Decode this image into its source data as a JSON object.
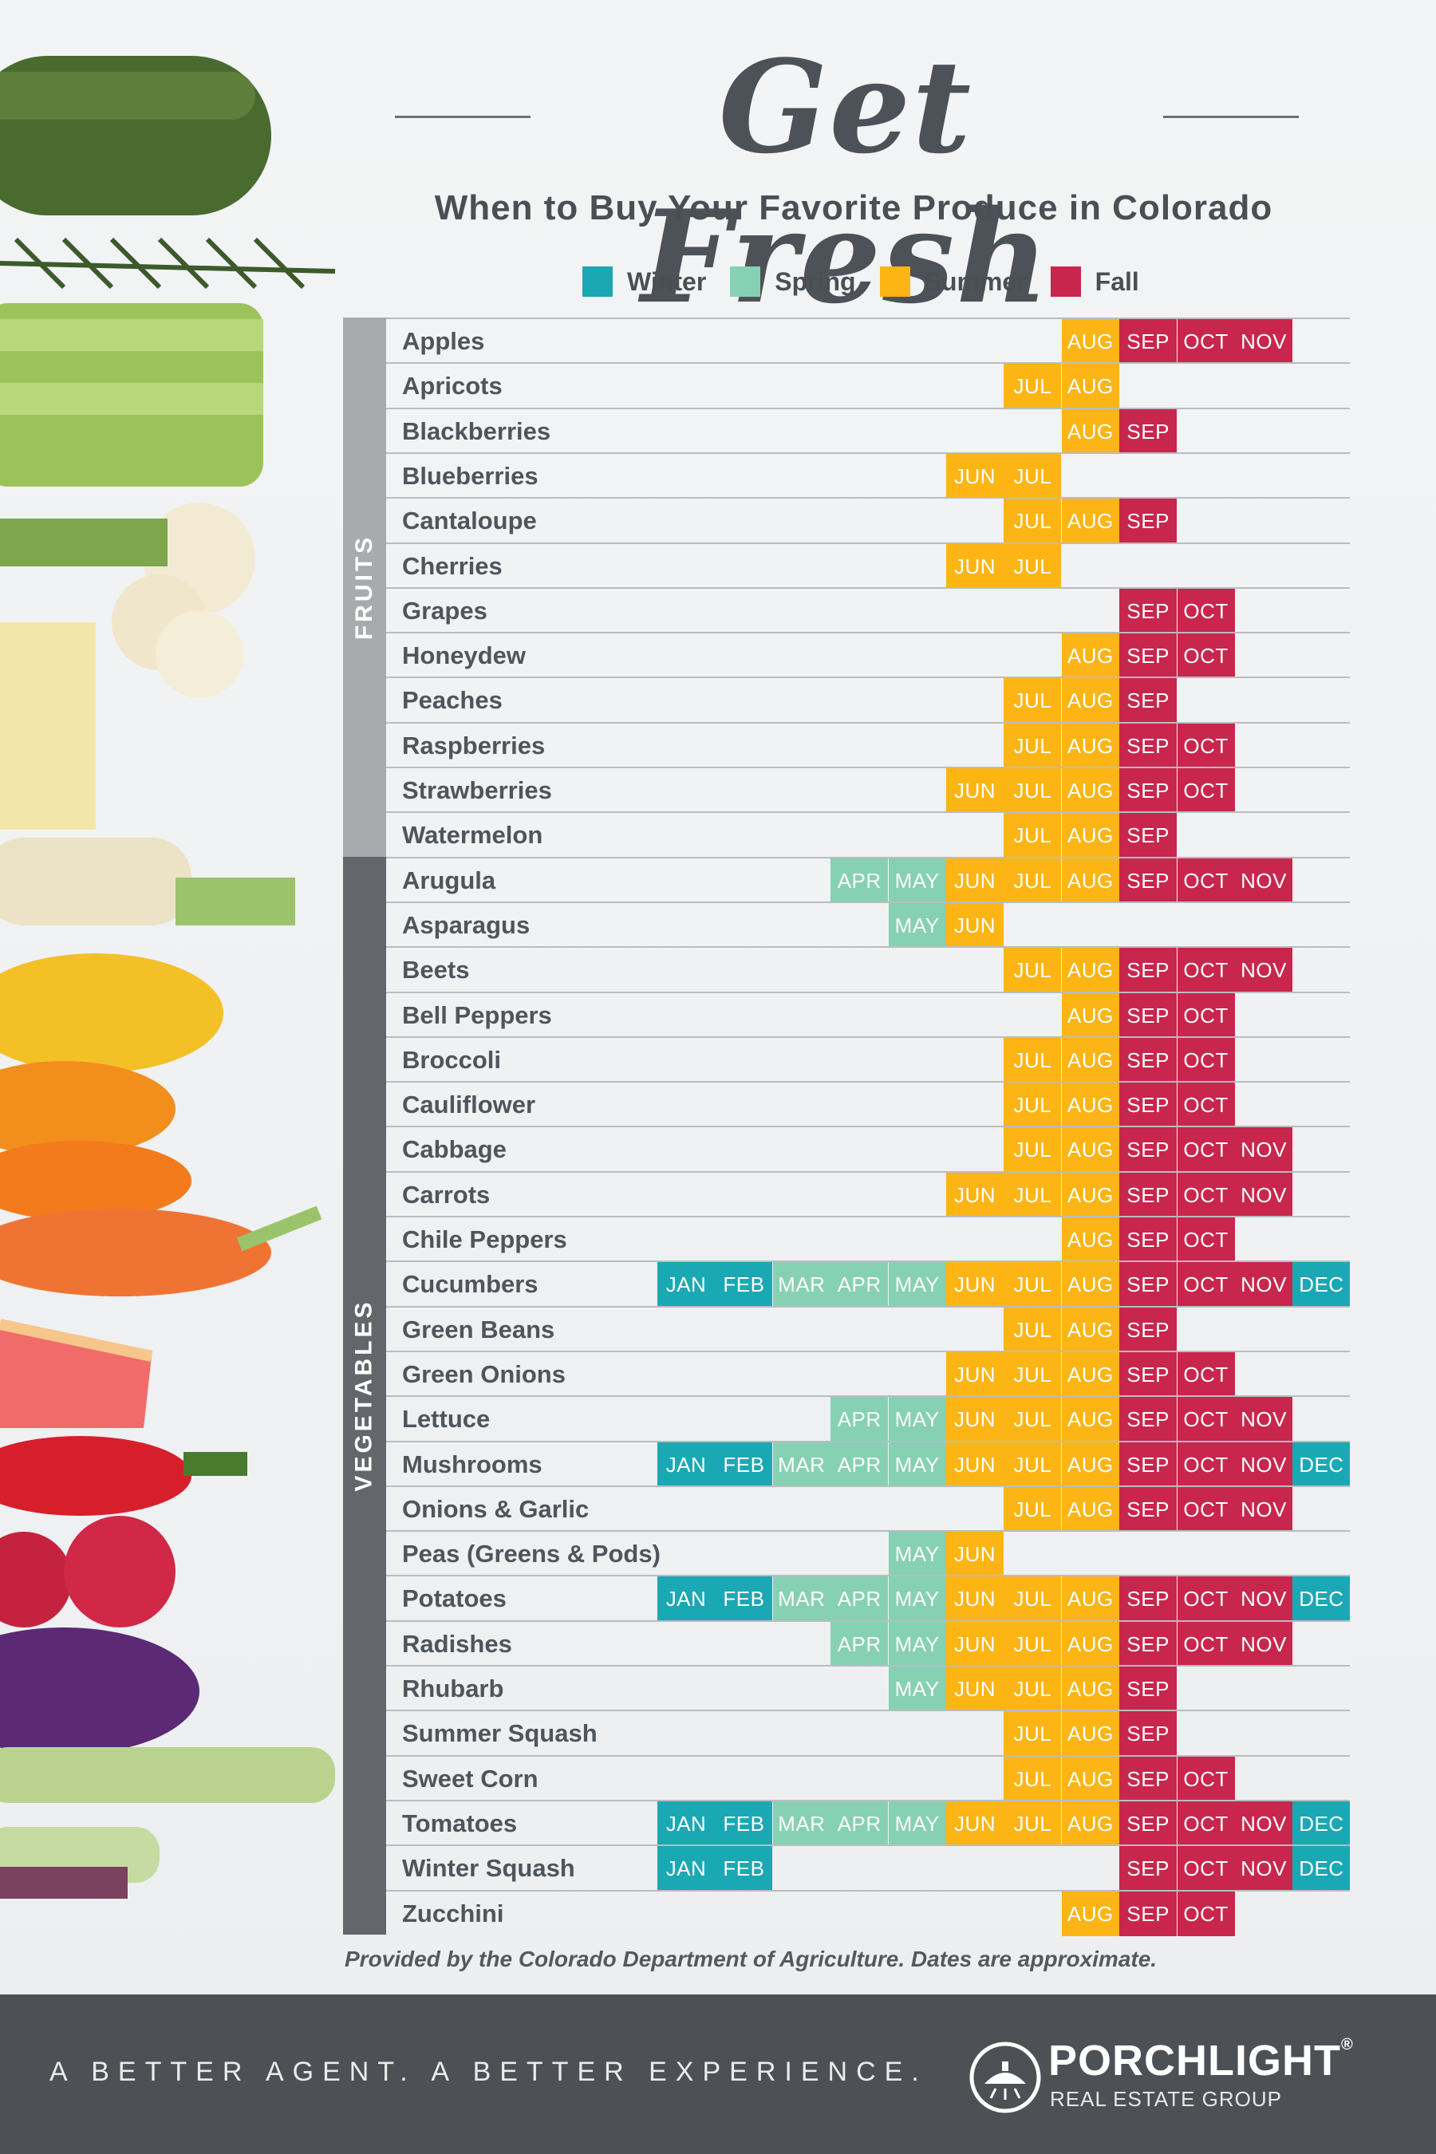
{
  "header": {
    "title": "Get Fresh",
    "subtitle": "When to Buy Your Favorite Produce in Colorado"
  },
  "legend": [
    {
      "label": "Winter",
      "color": "#1aa8b4"
    },
    {
      "label": "Spring",
      "color": "#86d1b3"
    },
    {
      "label": "Summer",
      "color": "#fdb515"
    },
    {
      "label": "Fall",
      "color": "#c8264d"
    }
  ],
  "months": [
    "JAN",
    "FEB",
    "MAR",
    "APR",
    "MAY",
    "JUN",
    "JUL",
    "AUG",
    "SEP",
    "OCT",
    "NOV",
    "DEC"
  ],
  "season_colors": {
    "JAN": "#1aa8b4",
    "FEB": "#1aa8b4",
    "DEC": "#1aa8b4",
    "MAR": "#86d1b3",
    "APR": "#86d1b3",
    "MAY": "#86d1b3",
    "JUN": "#fdb515",
    "JUL": "#fdb515",
    "AUG": "#fdb515",
    "SEP": "#c8264d",
    "OCT": "#c8264d",
    "NOV": "#c8264d"
  },
  "categories": [
    {
      "label": "FRUITS",
      "bar_color": "#a8abae"
    },
    {
      "label": "VEGETABLES",
      "bar_color": "#63676b"
    }
  ],
  "fruits": [
    {
      "name": "Apples",
      "months": [
        "AUG",
        "SEP",
        "OCT",
        "NOV"
      ]
    },
    {
      "name": "Apricots",
      "months": [
        "JUL",
        "AUG"
      ]
    },
    {
      "name": "Blackberries",
      "months": [
        "AUG",
        "SEP"
      ]
    },
    {
      "name": "Blueberries",
      "months": [
        "JUN",
        "JUL"
      ]
    },
    {
      "name": "Cantaloupe",
      "months": [
        "JUL",
        "AUG",
        "SEP"
      ]
    },
    {
      "name": "Cherries",
      "months": [
        "JUN",
        "JUL"
      ]
    },
    {
      "name": "Grapes",
      "months": [
        "SEP",
        "OCT"
      ]
    },
    {
      "name": "Honeydew",
      "months": [
        "AUG",
        "SEP",
        "OCT"
      ]
    },
    {
      "name": "Peaches",
      "months": [
        "JUL",
        "AUG",
        "SEP"
      ]
    },
    {
      "name": "Raspberries",
      "months": [
        "JUL",
        "AUG",
        "SEP",
        "OCT"
      ]
    },
    {
      "name": "Strawberries",
      "months": [
        "JUN",
        "JUL",
        "AUG",
        "SEP",
        "OCT"
      ]
    },
    {
      "name": "Watermelon",
      "months": [
        "JUL",
        "AUG",
        "SEP"
      ]
    }
  ],
  "vegetables": [
    {
      "name": "Arugula",
      "months": [
        "APR",
        "MAY",
        "JUN",
        "JUL",
        "AUG",
        "SEP",
        "OCT",
        "NOV"
      ]
    },
    {
      "name": "Asparagus",
      "months": [
        "MAY",
        "JUN"
      ]
    },
    {
      "name": "Beets",
      "months": [
        "JUL",
        "AUG",
        "SEP",
        "OCT",
        "NOV"
      ]
    },
    {
      "name": "Bell Peppers",
      "months": [
        "AUG",
        "SEP",
        "OCT"
      ]
    },
    {
      "name": "Broccoli",
      "months": [
        "JUL",
        "AUG",
        "SEP",
        "OCT"
      ]
    },
    {
      "name": "Cauliflower",
      "months": [
        "JUL",
        "AUG",
        "SEP",
        "OCT"
      ]
    },
    {
      "name": "Cabbage",
      "months": [
        "JUL",
        "AUG",
        "SEP",
        "OCT",
        "NOV"
      ]
    },
    {
      "name": "Carrots",
      "months": [
        "JUN",
        "JUL",
        "AUG",
        "SEP",
        "OCT",
        "NOV"
      ]
    },
    {
      "name": "Chile Peppers",
      "months": [
        "AUG",
        "SEP",
        "OCT"
      ]
    },
    {
      "name": "Cucumbers",
      "months": [
        "JAN",
        "FEB",
        "MAR",
        "APR",
        "MAY",
        "JUN",
        "JUL",
        "AUG",
        "SEP",
        "OCT",
        "NOV",
        "DEC"
      ]
    },
    {
      "name": "Green Beans",
      "months": [
        "JUL",
        "AUG",
        "SEP"
      ]
    },
    {
      "name": "Green Onions",
      "months": [
        "JUN",
        "JUL",
        "AUG",
        "SEP",
        "OCT"
      ]
    },
    {
      "name": "Lettuce",
      "months": [
        "APR",
        "MAY",
        "JUN",
        "JUL",
        "AUG",
        "SEP",
        "OCT",
        "NOV"
      ]
    },
    {
      "name": "Mushrooms",
      "months": [
        "JAN",
        "FEB",
        "MAR",
        "APR",
        "MAY",
        "JUN",
        "JUL",
        "AUG",
        "SEP",
        "OCT",
        "NOV",
        "DEC"
      ]
    },
    {
      "name": "Onions & Garlic",
      "months": [
        "JUL",
        "AUG",
        "SEP",
        "OCT",
        "NOV"
      ]
    },
    {
      "name": "Peas (Greens & Pods)",
      "months": [
        "MAY",
        "JUN"
      ]
    },
    {
      "name": "Potatoes",
      "months": [
        "JAN",
        "FEB",
        "MAR",
        "APR",
        "MAY",
        "JUN",
        "JUL",
        "AUG",
        "SEP",
        "OCT",
        "NOV",
        "DEC"
      ]
    },
    {
      "name": "Radishes",
      "months": [
        "APR",
        "MAY",
        "JUN",
        "JUL",
        "AUG",
        "SEP",
        "OCT",
        "NOV"
      ]
    },
    {
      "name": "Rhubarb",
      "months": [
        "MAY",
        "JUN",
        "JUL",
        "AUG",
        "SEP"
      ]
    },
    {
      "name": "Summer Squash",
      "months": [
        "JUL",
        "AUG",
        "SEP"
      ]
    },
    {
      "name": "Sweet Corn",
      "months": [
        "JUL",
        "AUG",
        "SEP",
        "OCT"
      ]
    },
    {
      "name": "Tomatoes",
      "months": [
        "JAN",
        "FEB",
        "MAR",
        "APR",
        "MAY",
        "JUN",
        "JUL",
        "AUG",
        "SEP",
        "OCT",
        "NOV",
        "DEC"
      ]
    },
    {
      "name": "Winter Squash",
      "months": [
        "JAN",
        "FEB",
        "SEP",
        "OCT",
        "NOV",
        "DEC"
      ]
    },
    {
      "name": "Zucchini",
      "months": [
        "AUG",
        "SEP",
        "OCT"
      ]
    }
  ],
  "source_note": "Provided by the Colorado Department of Agriculture. Dates are approximate.",
  "footer": {
    "tagline": "A BETTER AGENT. A BETTER EXPERIENCE.",
    "brand": "PORCHLIGHT",
    "brand_sub": "REAL ESTATE GROUP",
    "registered_mark": "®"
  }
}
